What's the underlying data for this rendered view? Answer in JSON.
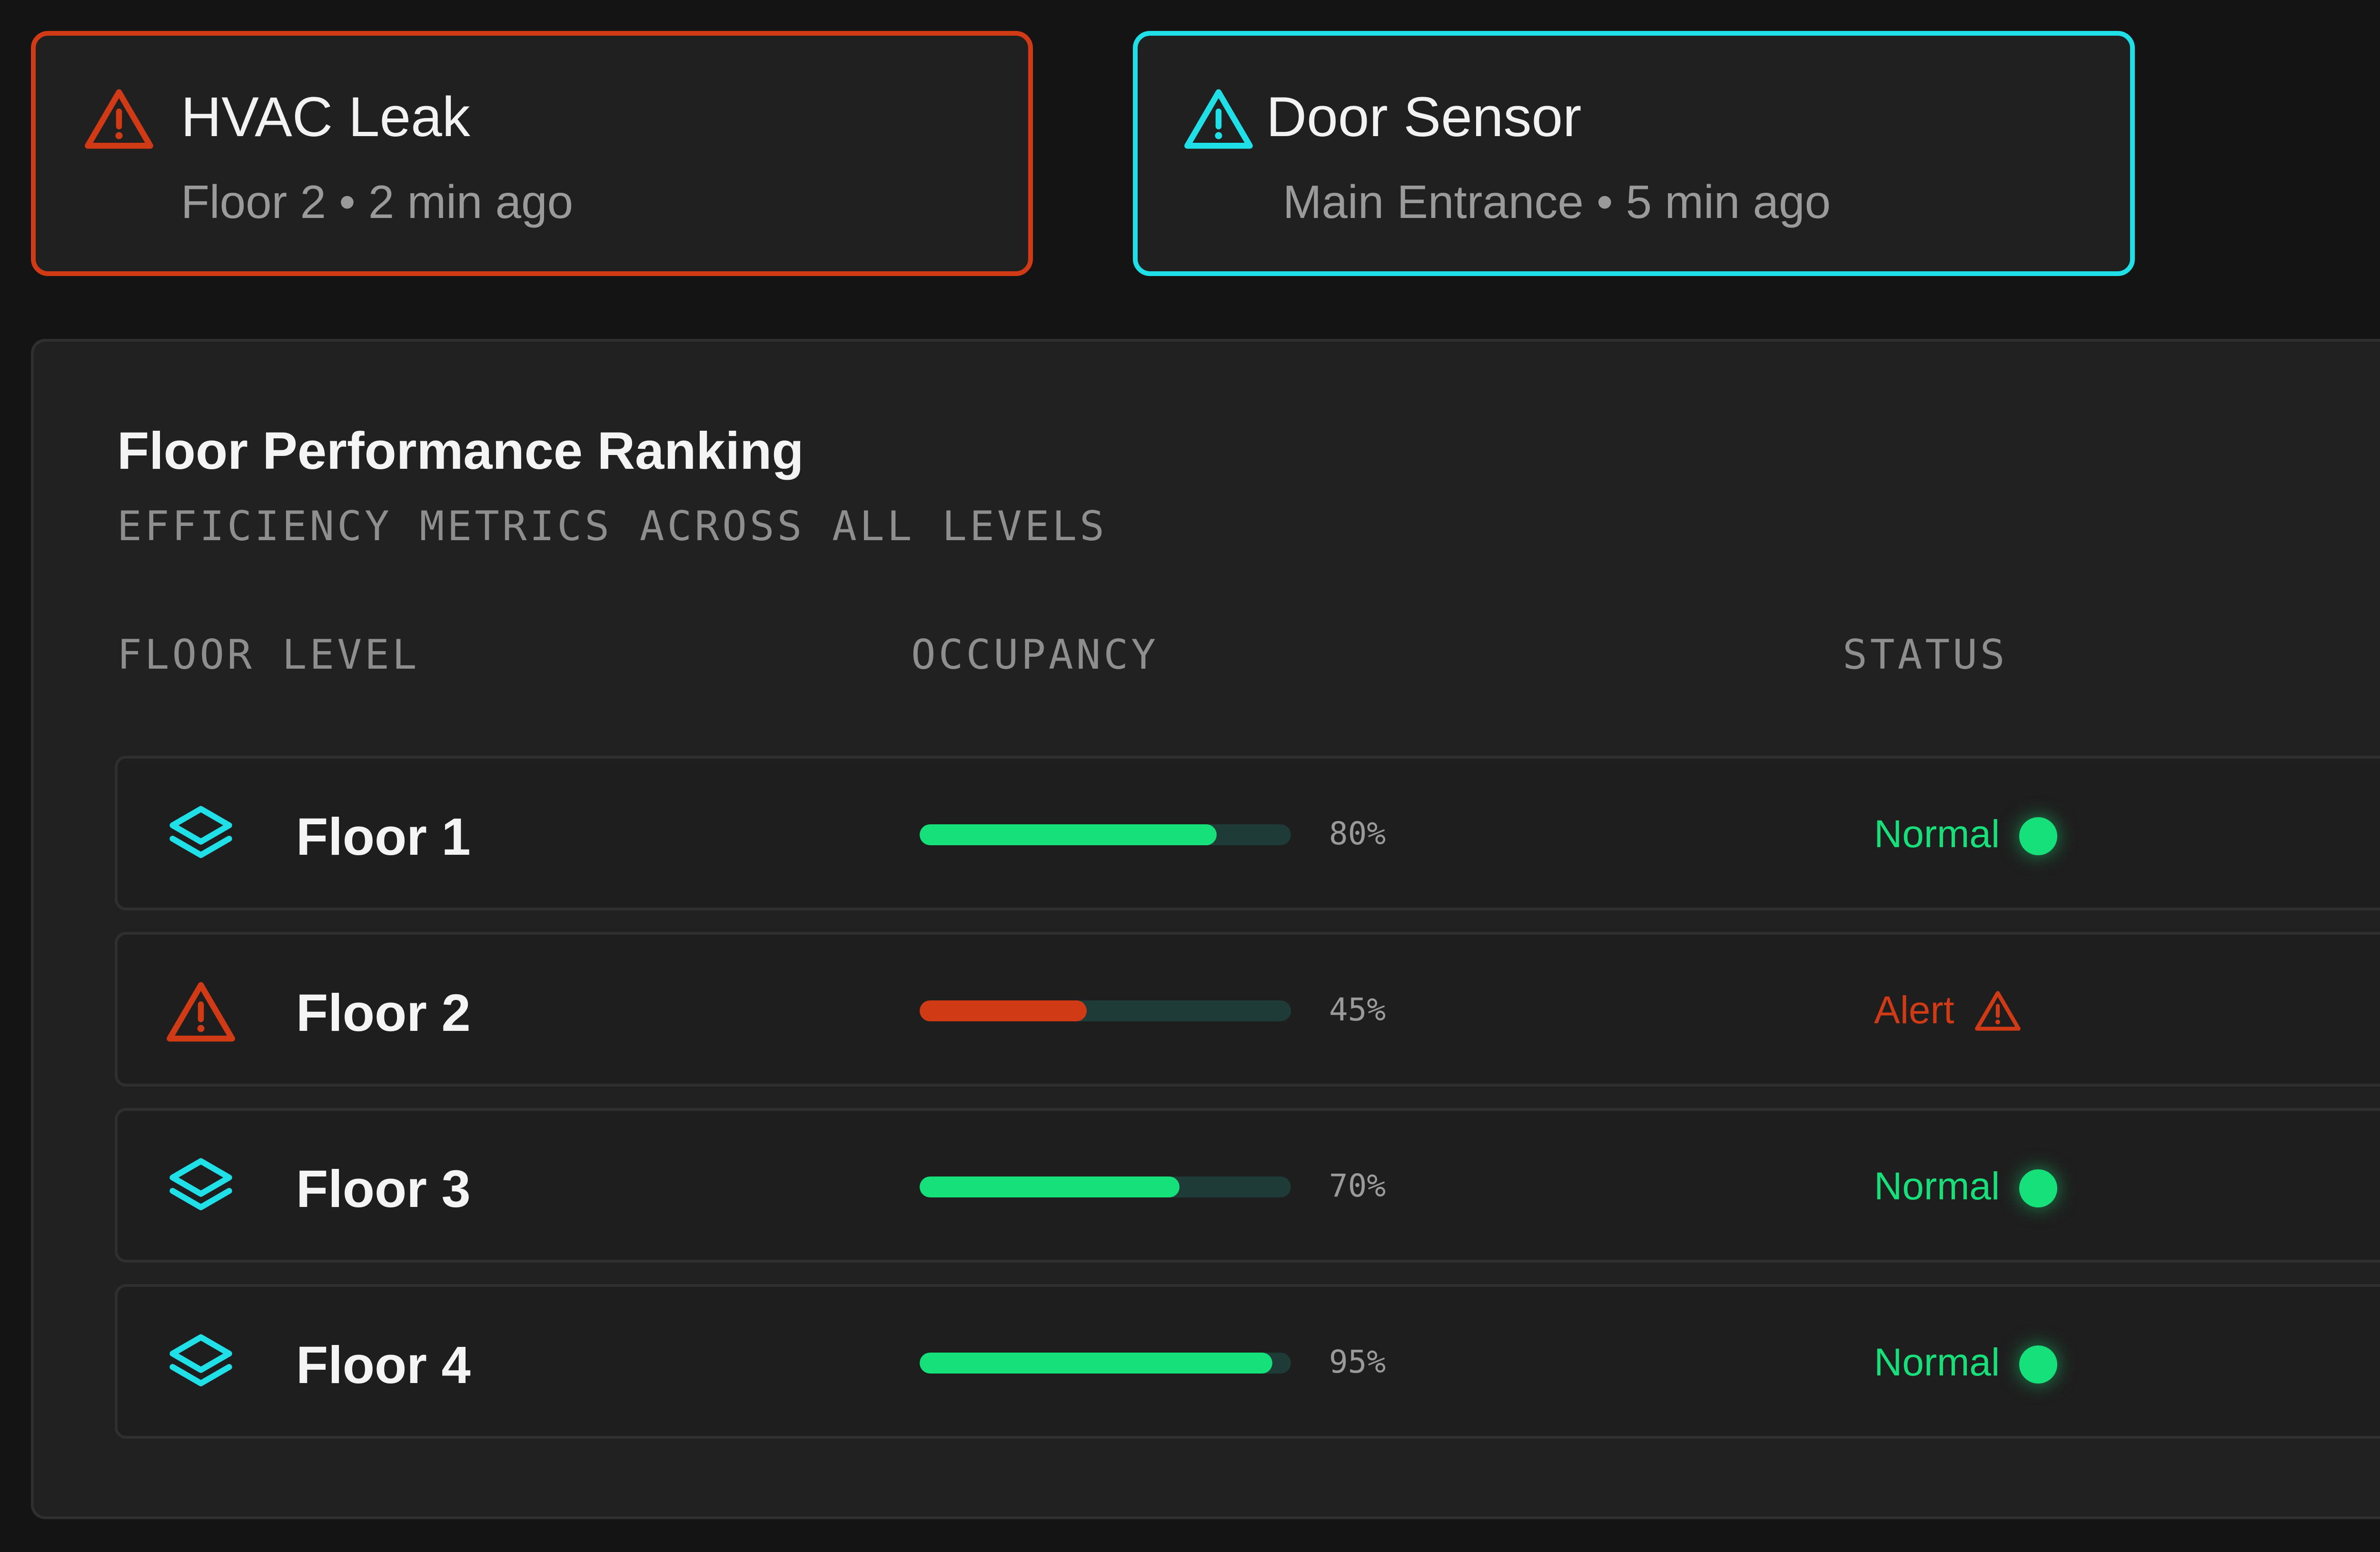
{
  "colors": {
    "alert_red": "#d03a14",
    "accent_cyan": "#1ee0e6",
    "normal_green": "#16e07a",
    "track": "#1f3b38"
  },
  "alerts": [
    {
      "icon": "warning-triangle-icon",
      "title": "HVAC Leak",
      "subtitle": "Floor 2 • 2 min ago"
    },
    {
      "icon": "warning-triangle-icon",
      "title": "Door Sensor",
      "subtitle": "Main Entrance • 5 min ago"
    }
  ],
  "panel": {
    "title": "Floor Performance Ranking",
    "subtitle": "EFFICIENCY METRICS ACROSS ALL LEVELS",
    "columns": [
      "FLOOR LEVEL",
      "OCCUPANCY",
      "STATUS"
    ]
  },
  "floors": [
    {
      "icon": "layers-icon",
      "name": "Floor 1",
      "occupancy": 80,
      "occupancy_label": "80%",
      "status": "Normal"
    },
    {
      "icon": "warning-triangle-icon",
      "name": "Floor 2",
      "occupancy": 45,
      "occupancy_label": "45%",
      "status": "Alert"
    },
    {
      "icon": "layers-icon",
      "name": "Floor 3",
      "occupancy": 70,
      "occupancy_label": "70%",
      "status": "Normal"
    },
    {
      "icon": "layers-icon",
      "name": "Floor 4",
      "occupancy": 95,
      "occupancy_label": "95%",
      "status": "Normal"
    }
  ]
}
